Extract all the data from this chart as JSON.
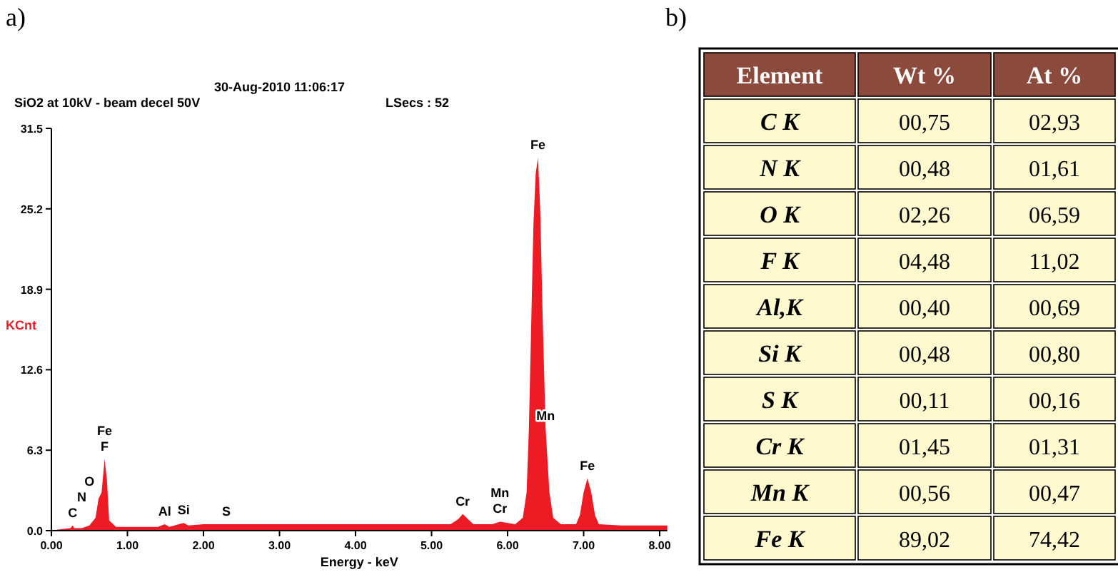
{
  "chart_data": [
    {
      "type": "area",
      "title": "a)",
      "xlabel": "Energy - keV",
      "ylabel": "KCnt",
      "annotations": [
        "30-Aug-2010 11:06:17",
        "SiO2 at 10kV - beam decel 50V",
        "LSecs : 52",
        {
          "text": "C",
          "x": 0.28,
          "y": 0.4
        },
        {
          "text": "N",
          "x": 0.4,
          "y": 0.2
        },
        {
          "text": "O",
          "x": 0.5,
          "y": 0.4
        },
        {
          "text": "F",
          "x": 0.7,
          "y": 5.6
        },
        {
          "text": "Fe",
          "x": 0.7,
          "y": 5.6
        },
        {
          "text": "Al",
          "x": 1.49,
          "y": 0.5
        },
        {
          "text": "Si",
          "x": 1.74,
          "y": 0.6
        },
        {
          "text": "S",
          "x": 2.3,
          "y": 0.5
        },
        {
          "text": "Cr",
          "x": 5.41,
          "y": 1.3
        },
        {
          "text": "Cr",
          "x": 5.9,
          "y": 0.7
        },
        {
          "text": "Mn",
          "x": 5.9,
          "y": 0.7
        },
        {
          "text": "Mn",
          "x": 6.5,
          "y": 8
        },
        {
          "text": "Fe",
          "x": 6.4,
          "y": 29.2
        },
        {
          "text": "Fe",
          "x": 7.05,
          "y": 4.1
        }
      ],
      "x": [
        0,
        0.1,
        0.25,
        0.28,
        0.3,
        0.4,
        0.5,
        0.58,
        0.62,
        0.66,
        0.7,
        0.73,
        0.76,
        0.85,
        1.0,
        1.2,
        1.4,
        1.49,
        1.55,
        1.74,
        1.8,
        2.0,
        2.3,
        2.5,
        3.0,
        3.5,
        4.0,
        4.5,
        5.0,
        5.25,
        5.35,
        5.41,
        5.48,
        5.55,
        5.8,
        5.9,
        6.0,
        6.1,
        6.2,
        6.25,
        6.28,
        6.31,
        6.34,
        6.37,
        6.4,
        6.43,
        6.46,
        6.5,
        6.55,
        6.6,
        6.7,
        6.9,
        6.95,
        7.0,
        7.05,
        7.1,
        7.15,
        7.2,
        7.5,
        8.1
      ],
      "series": [
        {
          "color": "#ed1c24",
          "values": [
            0,
            0.1,
            0.2,
            0.4,
            0.2,
            0.2,
            0.4,
            1.0,
            2.5,
            3.0,
            5.6,
            4.0,
            0.8,
            0.3,
            0.3,
            0.3,
            0.3,
            0.5,
            0.3,
            0.6,
            0.4,
            0.5,
            0.5,
            0.5,
            0.5,
            0.5,
            0.5,
            0.5,
            0.5,
            0.5,
            0.9,
            1.3,
            0.9,
            0.5,
            0.5,
            0.7,
            0.6,
            0.5,
            1.0,
            3,
            8,
            16,
            24,
            28,
            29.2,
            25,
            17,
            8,
            3,
            1,
            0.5,
            0.5,
            1.2,
            3,
            4.1,
            3,
            1.2,
            0.5,
            0.4,
            0.4
          ]
        }
      ],
      "xlim": [
        0,
        8.1
      ],
      "xticks": [
        {
          "value": 0,
          "label": "0.00"
        },
        {
          "value": 1,
          "label": "1.00"
        },
        {
          "value": 2,
          "label": "2.00"
        },
        {
          "value": 3,
          "label": "3.00"
        },
        {
          "value": 4,
          "label": "4.00"
        },
        {
          "value": 5,
          "label": "5.00"
        },
        {
          "value": 6,
          "label": "6.00"
        },
        {
          "value": 7,
          "label": "7.00"
        },
        {
          "value": 8,
          "label": "8.00"
        }
      ],
      "ylim": [
        0,
        31.5
      ],
      "yticks": [
        {
          "value": 0,
          "label": "0.0"
        },
        6.3,
        12.6,
        18.9,
        25.2,
        31.5
      ],
      "grid": false
    },
    {
      "type": "other",
      "title": "b)",
      "xlabel": "Element",
      "categories": [
        "C K",
        "N K",
        "O K",
        "F K",
        "Al,K",
        "Si K",
        "S K",
        "Cr K",
        "Mn K",
        "Fe K"
      ],
      "series": [
        {
          "name": "Wt %",
          "values": [
            0.75,
            0.48,
            2.26,
            4.48,
            0.4,
            0.48,
            0.11,
            1.45,
            0.56,
            89.02
          ],
          "value_labels": [
            "00,75",
            "00,48",
            "02,26",
            "04,48",
            "00,40",
            "00,48",
            "00,11",
            "01,45",
            "00,56",
            "89,02"
          ]
        },
        {
          "name": "At %",
          "values": [
            2.93,
            1.61,
            6.59,
            11.02,
            0.69,
            0.8,
            0.16,
            1.31,
            0.47,
            74.42
          ],
          "value_labels": [
            "02,93",
            "01,61",
            "06,59",
            "11,02",
            "00,69",
            "00,80",
            "00,16",
            "01,31",
            "00,47",
            "74,42"
          ]
        }
      ]
    }
  ]
}
